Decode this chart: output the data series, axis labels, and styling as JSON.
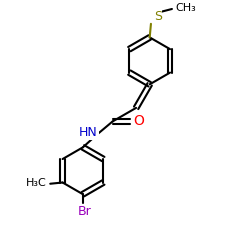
{
  "bg": "#ffffff",
  "bond_color": "#000000",
  "S_color": "#808000",
  "O_color": "#ff0000",
  "N_color": "#0000cc",
  "Br_color": "#9900bb",
  "lw": 1.5,
  "fs": 8.0,
  "xlim": [
    0,
    10
  ],
  "ylim": [
    0,
    10
  ]
}
